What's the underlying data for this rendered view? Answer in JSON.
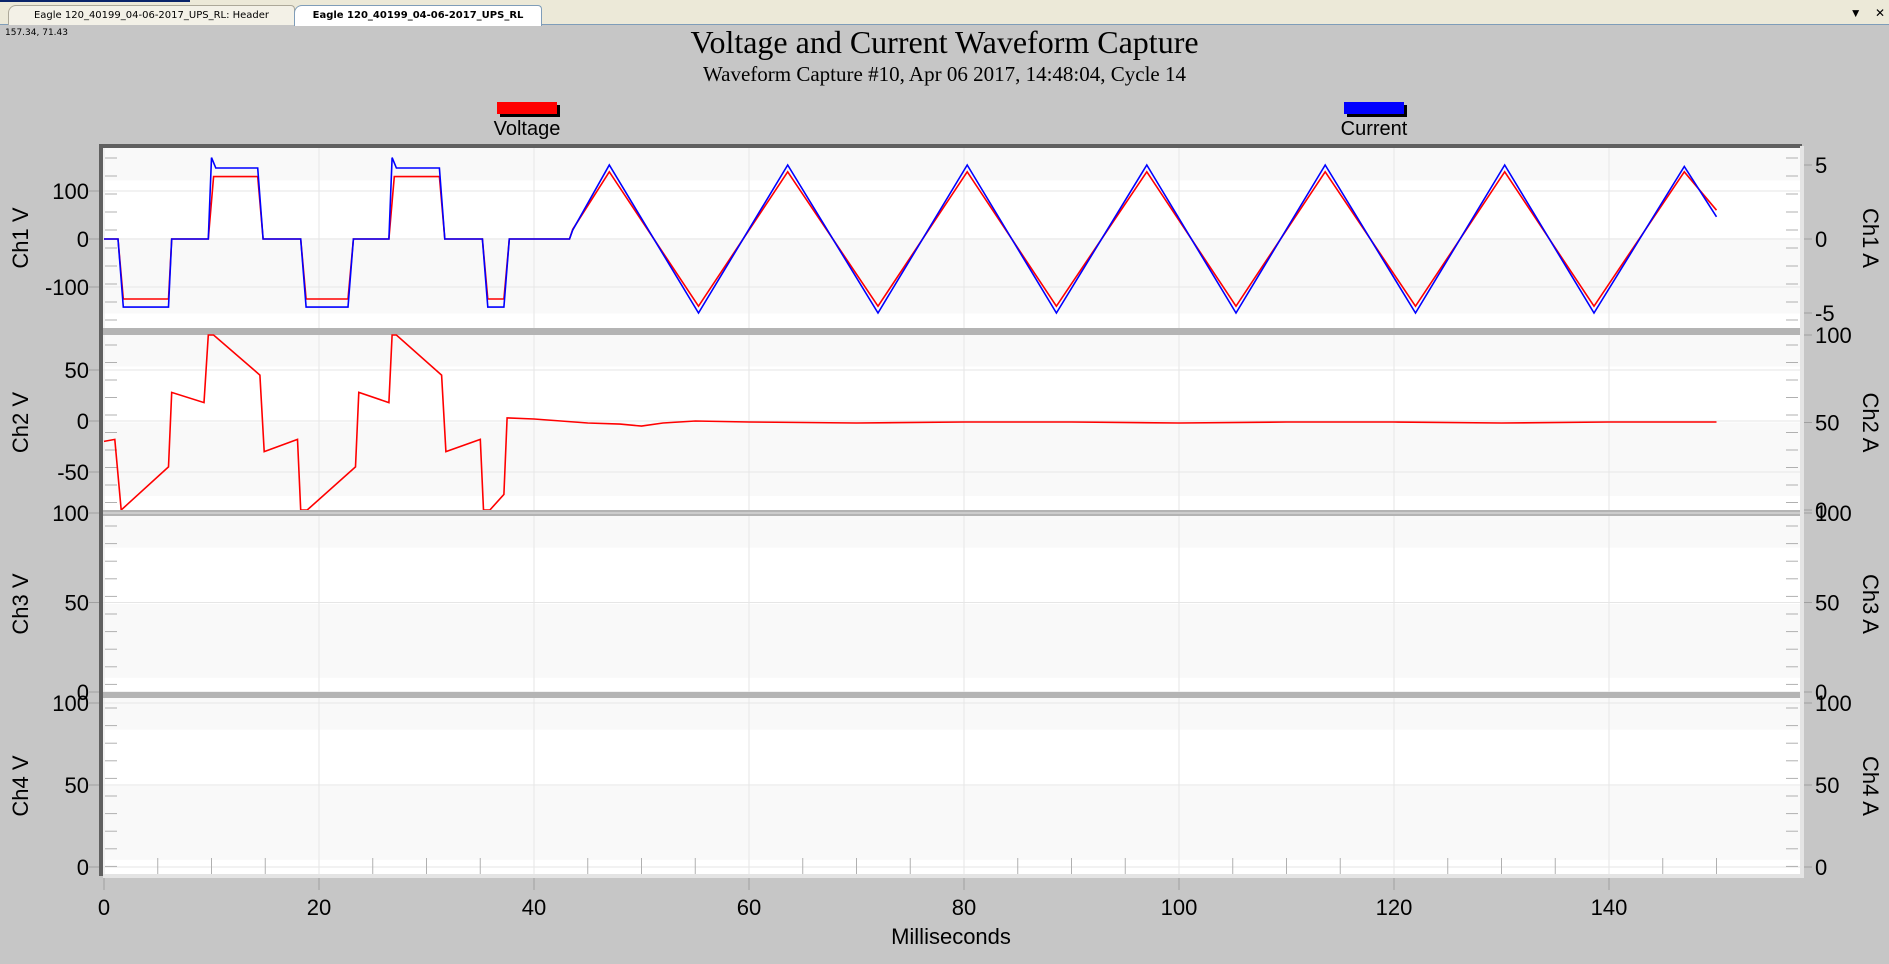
{
  "tabs": [
    {
      "label": "Eagle 120_40199_04-06-2017_UPS_RL: Header",
      "active": false
    },
    {
      "label": "Eagle 120_40199_04-06-2017_UPS_RL",
      "active": true
    }
  ],
  "window_controls": {
    "dropdown": "▼",
    "close": "✕"
  },
  "cursor_coords": "157.34, 71.43",
  "chart": {
    "title": "Voltage and Current Waveform Capture",
    "subtitle": "Waveform Capture #10, Apr 06 2017, 14:48:04,  Cycle 14",
    "legend": [
      {
        "label": "Voltage",
        "color": "#ff0000"
      },
      {
        "label": "Current",
        "color": "#0000ff"
      }
    ],
    "xlabel": "Milliseconds",
    "xticks": [
      "0",
      "20",
      "40",
      "60",
      "80",
      "100",
      "120",
      "140"
    ],
    "panels": [
      {
        "left_label": "Ch1 V",
        "right_label": "Ch1 A",
        "left_ticks": [
          "100",
          "0",
          "-100"
        ],
        "right_ticks": [
          "5",
          "0",
          "-5"
        ]
      },
      {
        "left_label": "Ch2 V",
        "right_label": "Ch2 A",
        "left_ticks": [
          "50",
          "0",
          "-50"
        ],
        "right_ticks": [
          "100",
          "50",
          "0"
        ]
      },
      {
        "left_label": "Ch3 V",
        "right_label": "Ch3 A",
        "left_ticks": [
          "100",
          "50",
          "0"
        ],
        "right_ticks": [
          "100",
          "50",
          "0"
        ]
      },
      {
        "left_label": "Ch4 V",
        "right_label": "Ch4 A",
        "left_ticks": [
          "100",
          "50",
          "0"
        ],
        "right_ticks": [
          "100",
          "50",
          "0"
        ]
      }
    ]
  },
  "chart_data": {
    "type": "line",
    "title": "Voltage and Current Waveform Capture",
    "subtitle": "Waveform Capture #10, Apr 06 2017, 14:48:04,  Cycle 14",
    "xlabel": "Milliseconds",
    "xlim": [
      0,
      157
    ],
    "xticks": [
      0,
      20,
      40,
      60,
      80,
      100,
      120,
      140
    ],
    "grid": true,
    "legend_position": "top",
    "legend": [
      "Voltage",
      "Current"
    ],
    "panels": [
      {
        "name": "Ch1",
        "ylabel_left": "Ch1 V",
        "ylim_left": [
          -150,
          150
        ],
        "yticks_left": [
          -100,
          0,
          100
        ],
        "ylabel_right": "Ch1 A",
        "ylim_right": [
          -6,
          6
        ],
        "yticks_right": [
          -5,
          0,
          5
        ],
        "series": [
          {
            "name": "Voltage",
            "color": "#ff0000",
            "axis": "left",
            "x": [
              0,
              1.3,
              1.8,
              6,
              6.3,
              9.7,
              10.2,
              14.3,
              14.8,
              18.3,
              18.8,
              22.7,
              23.2,
              26.5,
              27,
              31.2,
              31.7,
              35.2,
              35.7,
              37.2,
              37.7,
              43.3,
              43.6,
              47,
              55.3,
              63.6,
              72,
              80.3,
              88.6,
              97,
              105.3,
              113.6,
              122,
              130.3,
              138.6,
              147,
              150
            ],
            "y": [
              0,
              0,
              -125,
              -125,
              0,
              0,
              130,
              130,
              0,
              0,
              -125,
              -125,
              0,
              0,
              130,
              130,
              0,
              0,
              -125,
              -125,
              0,
              0,
              20,
              140,
              -140,
              140,
              -140,
              140,
              -140,
              140,
              -140,
              140,
              -140,
              140,
              -140,
              140,
              60
            ]
          },
          {
            "name": "Current",
            "color": "#0000ff",
            "axis": "right",
            "x": [
              0,
              1.3,
              1.8,
              6,
              6.3,
              9.7,
              10,
              10.4,
              14.3,
              14.8,
              18.3,
              18.8,
              22.7,
              23.2,
              26.5,
              26.8,
              27.2,
              31.2,
              31.7,
              35.2,
              35.7,
              37.2,
              37.7,
              43.3,
              43.6,
              47,
              55.3,
              63.6,
              72,
              80.3,
              88.6,
              97,
              105.3,
              113.6,
              122,
              130.3,
              138.6,
              147,
              150
            ],
            "y": [
              0,
              0,
              -4.6,
              -4.6,
              0,
              0,
              5.5,
              4.8,
              4.8,
              0,
              0,
              -4.6,
              -4.6,
              0,
              0,
              5.5,
              4.8,
              4.8,
              0,
              0,
              -4.6,
              -4.6,
              0,
              0,
              0.6,
              5,
              -5,
              5,
              -5,
              5,
              -5,
              5,
              -5,
              5,
              -5,
              5,
              -5,
              4.9,
              1.5
            ]
          }
        ]
      },
      {
        "name": "Ch2",
        "ylabel_left": "Ch2 V",
        "ylim_left": [
          -90,
          90
        ],
        "yticks_left": [
          -50,
          0,
          50
        ],
        "ylabel_right": "Ch2 A",
        "ylim_right": [
          0,
          100
        ],
        "yticks_right": [
          0,
          50,
          100
        ],
        "series": [
          {
            "name": "Voltage",
            "color": "#ff0000",
            "axis": "left",
            "x": [
              0,
              1,
              1.6,
              6,
              6.3,
              9.3,
              9.7,
              10.2,
              14.5,
              14.9,
              18,
              18.3,
              18.9,
              23.4,
              23.7,
              26.5,
              26.8,
              27.2,
              31.4,
              31.8,
              35,
              35.3,
              35.9,
              37.2,
              37.5,
              40,
              45,
              48,
              50,
              52,
              55,
              60,
              70,
              80,
              90,
              100,
              110,
              120,
              130,
              140,
              150
            ],
            "y": [
              -20,
              -18,
              -90,
              -45,
              28,
              18,
              90,
              88,
              45,
              -30,
              -18,
              -90,
              -90,
              -45,
              28,
              18,
              90,
              88,
              45,
              -30,
              -18,
              -90,
              -90,
              -72,
              3,
              2,
              -2,
              -3,
              -5,
              -2,
              0,
              -1,
              -2,
              -1,
              -1,
              -2,
              -1,
              -1,
              -2,
              -1,
              -1
            ]
          }
        ]
      },
      {
        "name": "Ch3",
        "ylabel_left": "Ch3 V",
        "ylim_left": [
          0,
          100
        ],
        "yticks_left": [
          0,
          50,
          100
        ],
        "ylabel_right": "Ch3 A",
        "ylim_right": [
          0,
          100
        ],
        "yticks_right": [
          0,
          50,
          100
        ],
        "series": []
      },
      {
        "name": "Ch4",
        "ylabel_left": "Ch4 V",
        "ylim_left": [
          0,
          100
        ],
        "yticks_left": [
          0,
          50,
          100
        ],
        "ylabel_right": "Ch4 A",
        "ylim_right": [
          0,
          100
        ],
        "yticks_right": [
          0,
          50,
          100
        ],
        "series": []
      }
    ]
  }
}
